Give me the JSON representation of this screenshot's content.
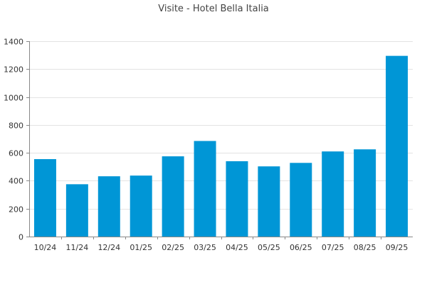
{
  "chart_data": {
    "type": "bar",
    "title": "Visite - Hotel Bella Italia",
    "xlabel": "",
    "ylabel": "",
    "categories": [
      "10/24",
      "11/24",
      "12/24",
      "01/25",
      "02/25",
      "03/25",
      "04/25",
      "05/25",
      "06/25",
      "07/25",
      "08/25",
      "09/25"
    ],
    "values": [
      555,
      375,
      432,
      437,
      575,
      685,
      540,
      503,
      528,
      610,
      625,
      1295
    ],
    "ylim": [
      0,
      1400
    ],
    "yticks": [
      0,
      200,
      400,
      600,
      800,
      1000,
      1200,
      1400
    ],
    "grid": true,
    "legend": "none",
    "bar_color": "#0096d6"
  }
}
